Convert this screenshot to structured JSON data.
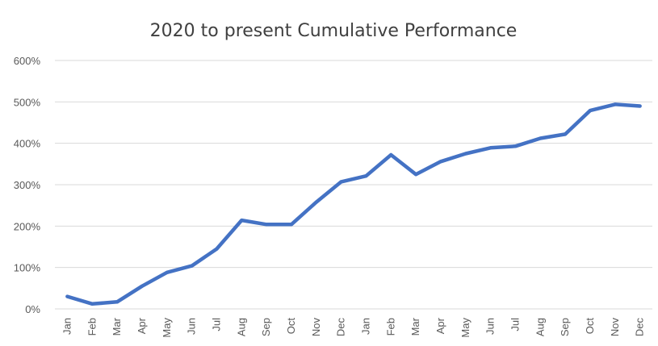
{
  "chart_data": {
    "type": "line",
    "title": "2020 to present Cumulative Performance",
    "xlabel": "",
    "ylabel": "",
    "categories": [
      "Jan",
      "Feb",
      "Mar",
      "Apr",
      "May",
      "Jun",
      "Jul",
      "Aug",
      "Sep",
      "Oct",
      "Nov",
      "Dec",
      "Jan",
      "Feb",
      "Mar",
      "Apr",
      "May",
      "Jun",
      "Jul",
      "Aug",
      "Sep",
      "Oct",
      "Nov",
      "Dec"
    ],
    "series": [
      {
        "color": "#4472c4",
        "values": [
          30,
          12,
          17,
          55,
          88,
          104,
          145,
          214,
          204,
          204,
          258,
          307,
          321,
          372,
          325,
          356,
          375,
          389,
          393,
          412,
          422,
          479,
          494,
          490
        ]
      }
    ],
    "yticks": [
      0,
      100,
      200,
      300,
      400,
      500,
      600
    ],
    "ytick_labels": [
      "0%",
      "100%",
      "200%",
      "300%",
      "400%",
      "500%",
      "600%"
    ],
    "ylim": [
      0,
      600
    ],
    "grid": true,
    "legend": "none"
  }
}
